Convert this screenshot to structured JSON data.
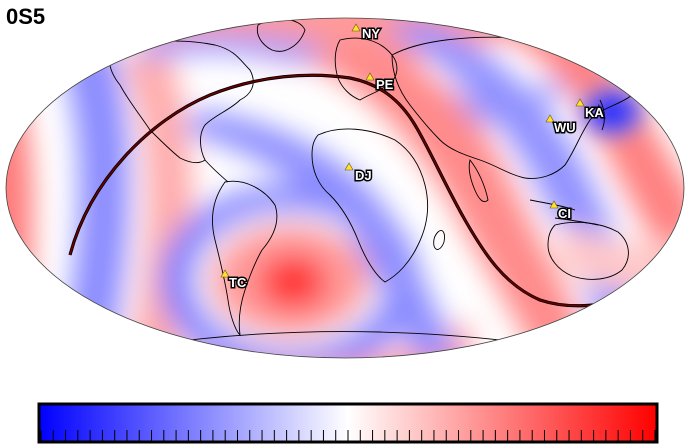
{
  "title": "0S5",
  "stations": [
    {
      "code": "NY"
    },
    {
      "code": "PE"
    },
    {
      "code": "KA"
    },
    {
      "code": "WU"
    },
    {
      "code": "DJ"
    },
    {
      "code": "CI"
    },
    {
      "code": "TC"
    }
  ],
  "colorscale": {
    "colors": [
      "#0000ff",
      "#ffffff",
      "#ff0000"
    ],
    "tick_count": 51
  },
  "colors": {
    "nodal_line": "#6b0000",
    "coastline": "#000000",
    "station_marker": "#ffe033"
  }
}
